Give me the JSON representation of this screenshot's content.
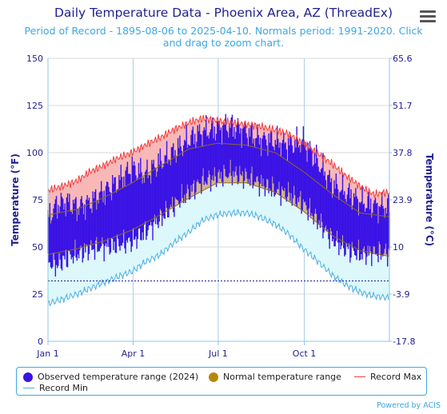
{
  "header": {
    "title": "Daily Temperature Data - Phoenix Area, AZ (ThreadEx)",
    "subtitle": "Period of Record - 1895-08-06 to 2025-04-10. Normals period: 1991-2020. Click and drag to zoom chart."
  },
  "credit": "Powered by ACIS",
  "colors": {
    "observed": "#3a12e6",
    "normal_fill": "#d2b48c",
    "normal_line": "#8b6a1f",
    "record_max": "#ee3c3c",
    "record_max_fill": "#f8b8b8",
    "record_min": "#4aaee6",
    "record_min_fill": "#dcf8fb",
    "freeze_line": "#1f1f8f"
  },
  "legend": {
    "observed": "Observed temperature range (2024)",
    "normal": "Normal temperature range",
    "record_max": "Record Max",
    "record_min": "Record Min"
  },
  "chart_data": {
    "type": "area",
    "x_axis_type": "day-of-year",
    "xlim": [
      1,
      366
    ],
    "x_ticks": [
      {
        "day": 1,
        "label": "Jan 1"
      },
      {
        "day": 92,
        "label": "Apr 1"
      },
      {
        "day": 183,
        "label": "Jul 1"
      },
      {
        "day": 275,
        "label": "Oct 1"
      }
    ],
    "ylabel_left": "Temperature (°F)",
    "ylabel_right": "Temperature (°C)",
    "ylim": [
      0,
      150
    ],
    "y_ticks_left": [
      "0",
      "25",
      "50",
      "75",
      "100",
      "125",
      "150"
    ],
    "y_ticks_right": [
      "-17.8",
      "-3.9",
      "10",
      "23.9",
      "37.8",
      "51.7",
      "65.6"
    ],
    "freeze_line_f": 32,
    "grid": true,
    "legend_position": "bottom",
    "series": [
      {
        "name": "Record Max",
        "key": "record_max",
        "x": [
          1,
          15,
          32,
          46,
          60,
          75,
          91,
          105,
          121,
          135,
          152,
          166,
          182,
          196,
          213,
          227,
          244,
          258,
          274,
          288,
          305,
          319,
          335,
          349,
          366
        ],
        "y": [
          80,
          82,
          85,
          90,
          93,
          97,
          100,
          104,
          108,
          112,
          116,
          118,
          117,
          116,
          115,
          114,
          112,
          110,
          105,
          100,
          94,
          88,
          82,
          78,
          79
        ]
      },
      {
        "name": "Normal temperature range",
        "key": "normal_high",
        "x": [
          1,
          32,
          60,
          91,
          121,
          152,
          182,
          213,
          244,
          274,
          305,
          335,
          366
        ],
        "y": [
          67,
          70,
          76,
          84,
          93,
          102,
          105,
          104,
          100,
          90,
          78,
          68,
          66
        ]
      },
      {
        "name": "Normal temperature range",
        "key": "normal_low",
        "x": [
          1,
          32,
          60,
          91,
          121,
          152,
          182,
          213,
          244,
          274,
          305,
          335,
          366
        ],
        "y": [
          46,
          49,
          53,
          59,
          67,
          76,
          84,
          84,
          79,
          69,
          56,
          48,
          45
        ]
      },
      {
        "name": "Record Min",
        "key": "record_min",
        "x": [
          1,
          15,
          32,
          46,
          60,
          75,
          91,
          105,
          121,
          135,
          152,
          166,
          182,
          196,
          213,
          227,
          244,
          258,
          274,
          288,
          305,
          319,
          335,
          349,
          366
        ],
        "y": [
          20,
          22,
          25,
          28,
          31,
          34,
          37,
          42,
          46,
          52,
          58,
          64,
          67,
          68,
          68,
          66,
          62,
          57,
          49,
          43,
          35,
          30,
          26,
          24,
          23
        ]
      },
      {
        "name": "Observed temperature range (2024)",
        "key": "observed_high",
        "x": [
          1,
          10,
          20,
          32,
          45,
          60,
          75,
          91,
          105,
          121,
          135,
          152,
          166,
          182,
          196,
          213,
          227,
          244,
          258,
          274,
          288,
          305,
          319,
          335,
          349,
          366
        ],
        "y": [
          65,
          72,
          74,
          71,
          73,
          79,
          84,
          92,
          88,
          95,
          100,
          107,
          111,
          113,
          114,
          111,
          107,
          106,
          104,
          106,
          96,
          83,
          79,
          74,
          72,
          71
        ]
      },
      {
        "name": "Observed temperature range (2024)",
        "key": "observed_low",
        "x": [
          1,
          10,
          20,
          32,
          45,
          60,
          75,
          91,
          105,
          121,
          135,
          152,
          166,
          182,
          196,
          213,
          227,
          244,
          258,
          274,
          288,
          305,
          319,
          335,
          349,
          366
        ],
        "y": [
          42,
          40,
          44,
          46,
          49,
          50,
          51,
          53,
          58,
          65,
          72,
          79,
          85,
          87,
          89,
          87,
          84,
          80,
          78,
          73,
          65,
          54,
          49,
          46,
          47,
          47
        ]
      }
    ]
  }
}
